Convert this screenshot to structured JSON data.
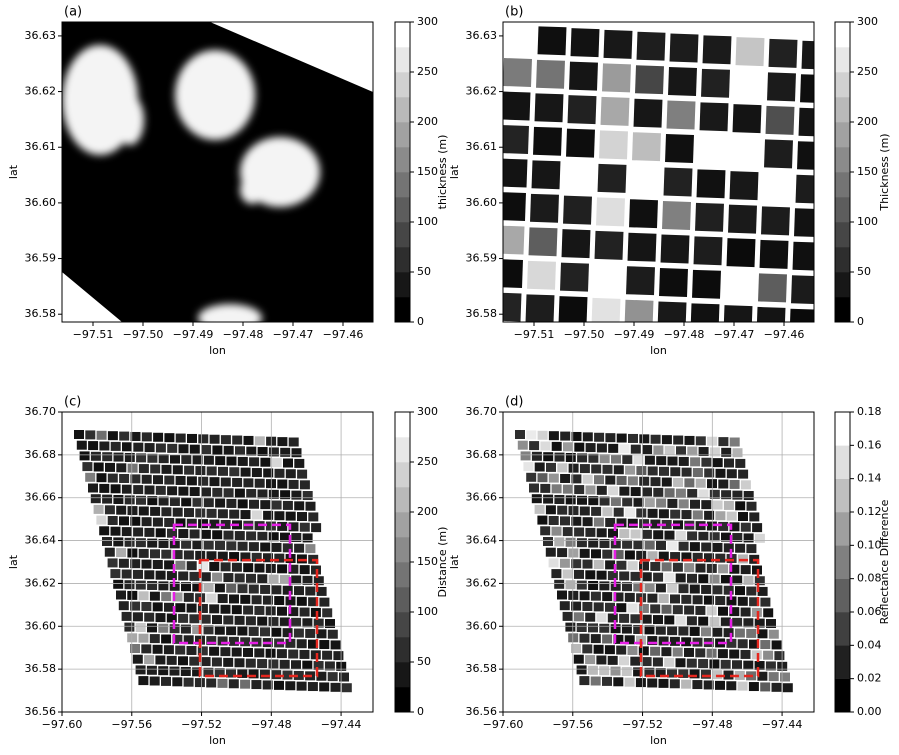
{
  "chart_data": [
    {
      "type": "map",
      "panel_label": "(a)",
      "xlabel": "lon",
      "ylabel": "lat",
      "style": "thickness-field",
      "xlim": [
        -97.5162,
        -97.454
      ],
      "ylim": [
        36.5786,
        36.6325
      ],
      "xticks": [
        {
          "value": -97.51,
          "label": "−97.51"
        },
        {
          "value": -97.5,
          "label": "−97.50"
        },
        {
          "value": -97.49,
          "label": "−97.49"
        },
        {
          "value": -97.48,
          "label": "−97.48"
        },
        {
          "value": -97.47,
          "label": "−97.47"
        },
        {
          "value": -97.46,
          "label": "−97.46"
        }
      ],
      "yticks": [
        36.58,
        36.59,
        {
          "value": 36.6,
          "label": "36.60"
        },
        36.61,
        36.62,
        36.63
      ],
      "grid": false,
      "colorbar": {
        "label": "thickness (m)",
        "lim": [
          0,
          300
        ],
        "levels": 12,
        "ticks": [
          0,
          50,
          100,
          150,
          200,
          250,
          300
        ]
      }
    },
    {
      "type": "map",
      "panel_label": "(b)",
      "xlabel": "lon",
      "ylabel": "lat",
      "style": "large-pixels",
      "xlim": [
        -97.5162,
        -97.454
      ],
      "ylim": [
        36.5786,
        36.6325
      ],
      "xticks": [
        {
          "value": -97.51,
          "label": "−97.51"
        },
        {
          "value": -97.5,
          "label": "−97.50"
        },
        {
          "value": -97.49,
          "label": "−97.49"
        },
        {
          "value": -97.48,
          "label": "−97.48"
        },
        {
          "value": -97.47,
          "label": "−97.47"
        },
        {
          "value": -97.46,
          "label": "−97.46"
        }
      ],
      "yticks": [
        36.58,
        36.59,
        {
          "value": 36.6,
          "label": "36.60"
        },
        36.61,
        36.62,
        36.63
      ],
      "grid": false,
      "colorbar": {
        "label": "Thickness (m)",
        "lim": [
          0,
          300
        ],
        "levels": 12,
        "ticks": [
          0,
          50,
          100,
          150,
          200,
          250,
          300
        ]
      }
    },
    {
      "type": "map",
      "panel_label": "(c)",
      "xlabel": "lon",
      "ylabel": "lat",
      "style": "swath-dark",
      "xlim": [
        -97.6,
        -97.4217
      ],
      "ylim": [
        36.56,
        36.7
      ],
      "xticks": [
        {
          "value": -97.6,
          "label": "−97.60"
        },
        {
          "value": -97.56,
          "label": "−97.56"
        },
        {
          "value": -97.52,
          "label": "−97.52"
        },
        {
          "value": -97.48,
          "label": "−97.48"
        },
        {
          "value": -97.44,
          "label": "−97.44"
        }
      ],
      "yticks": [
        36.56,
        36.58,
        {
          "value": 36.6,
          "label": "36.60"
        },
        36.62,
        36.64,
        36.66,
        36.68,
        {
          "value": 36.7,
          "label": "36.70"
        }
      ],
      "grid": true,
      "boxes": [
        {
          "color": "#e61ee6",
          "lon": [
            -97.5358,
            -97.4693
          ],
          "lat": [
            36.5922,
            36.6473
          ]
        },
        {
          "color": "#e6261e",
          "lon": [
            -97.5209,
            -97.4538
          ],
          "lat": [
            36.5768,
            36.6309
          ]
        }
      ],
      "colorbar": {
        "label": "Distance (m)",
        "lim": [
          0,
          300
        ],
        "levels": 12,
        "ticks": [
          0,
          50,
          100,
          150,
          200,
          250,
          300
        ]
      }
    },
    {
      "type": "map",
      "panel_label": "(d)",
      "xlabel": "lon",
      "ylabel": "lat",
      "style": "swath-mixed",
      "xlim": [
        -97.6,
        -97.4217
      ],
      "ylim": [
        36.56,
        36.7
      ],
      "xticks": [
        {
          "value": -97.6,
          "label": "−97.60"
        },
        {
          "value": -97.56,
          "label": "−97.56"
        },
        {
          "value": -97.52,
          "label": "−97.52"
        },
        {
          "value": -97.48,
          "label": "−97.48"
        },
        {
          "value": -97.44,
          "label": "−97.44"
        }
      ],
      "yticks": [
        36.56,
        36.58,
        {
          "value": 36.6,
          "label": "36.60"
        },
        36.62,
        36.64,
        36.66,
        36.68,
        {
          "value": 36.7,
          "label": "36.70"
        }
      ],
      "grid": true,
      "boxes": [
        {
          "color": "#e61ee6",
          "lon": [
            -97.5358,
            -97.4693
          ],
          "lat": [
            36.5922,
            36.6473
          ]
        },
        {
          "color": "#e6261e",
          "lon": [
            -97.5209,
            -97.4538
          ],
          "lat": [
            36.5768,
            36.6309
          ]
        }
      ],
      "colorbar": {
        "label": "Reflectance Difference",
        "lim": [
          0,
          0.18
        ],
        "levels": 9,
        "ticks": [
          {
            "value": 0,
            "label": "0.00"
          },
          0.02,
          0.04,
          0.06,
          0.08,
          {
            "value": 0.1,
            "label": "0.10"
          },
          0.12,
          0.14,
          0.16,
          0.18
        ]
      }
    }
  ]
}
